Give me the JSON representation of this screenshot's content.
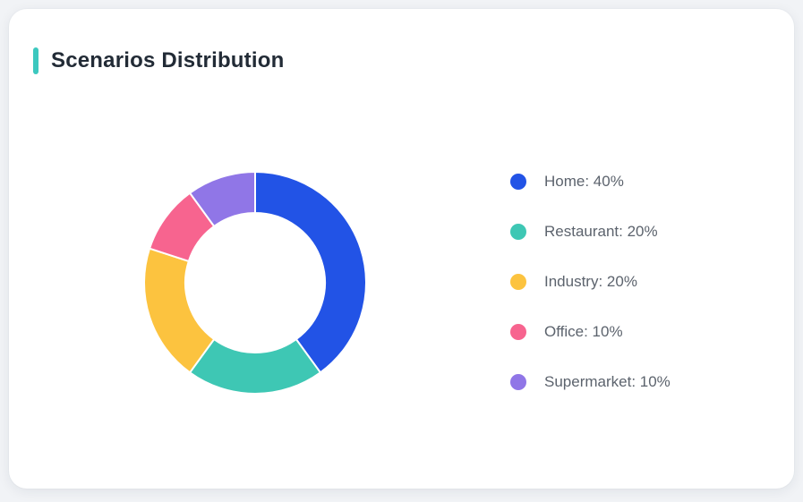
{
  "page": {
    "background": "#f1f3f6"
  },
  "card": {
    "background": "#ffffff"
  },
  "header": {
    "title": "Scenarios Distribution",
    "accent_color": "#3cc8bf",
    "title_color": "#222b36"
  },
  "chart_data": {
    "type": "pie",
    "title": "Scenarios Distribution",
    "donut": true,
    "outer_radius": 124,
    "inner_radius": 78,
    "start_angle_deg": 0,
    "direction": "clockwise",
    "grid": false,
    "legend_position": "right",
    "labels": [
      "Home",
      "Restaurant",
      "Industry",
      "Office",
      "Supermarket"
    ],
    "values": [
      40,
      20,
      20,
      10,
      10
    ],
    "unit": "%",
    "colors": [
      "#2253e6",
      "#3ec7b4",
      "#fcc33f",
      "#f7648f",
      "#9076e7"
    ],
    "legend_items": [
      {
        "label": "Home: 40%",
        "color": "#2253e6"
      },
      {
        "label": "Restaurant: 20%",
        "color": "#3ec7b4"
      },
      {
        "label": "Industry: 20%",
        "color": "#fcc33f"
      },
      {
        "label": "Office: 10%",
        "color": "#f7648f"
      },
      {
        "label": "Supermarket: 10%",
        "color": "#9076e7"
      }
    ],
    "segment_border_color": "#ffffff",
    "segment_border_width": 2
  }
}
